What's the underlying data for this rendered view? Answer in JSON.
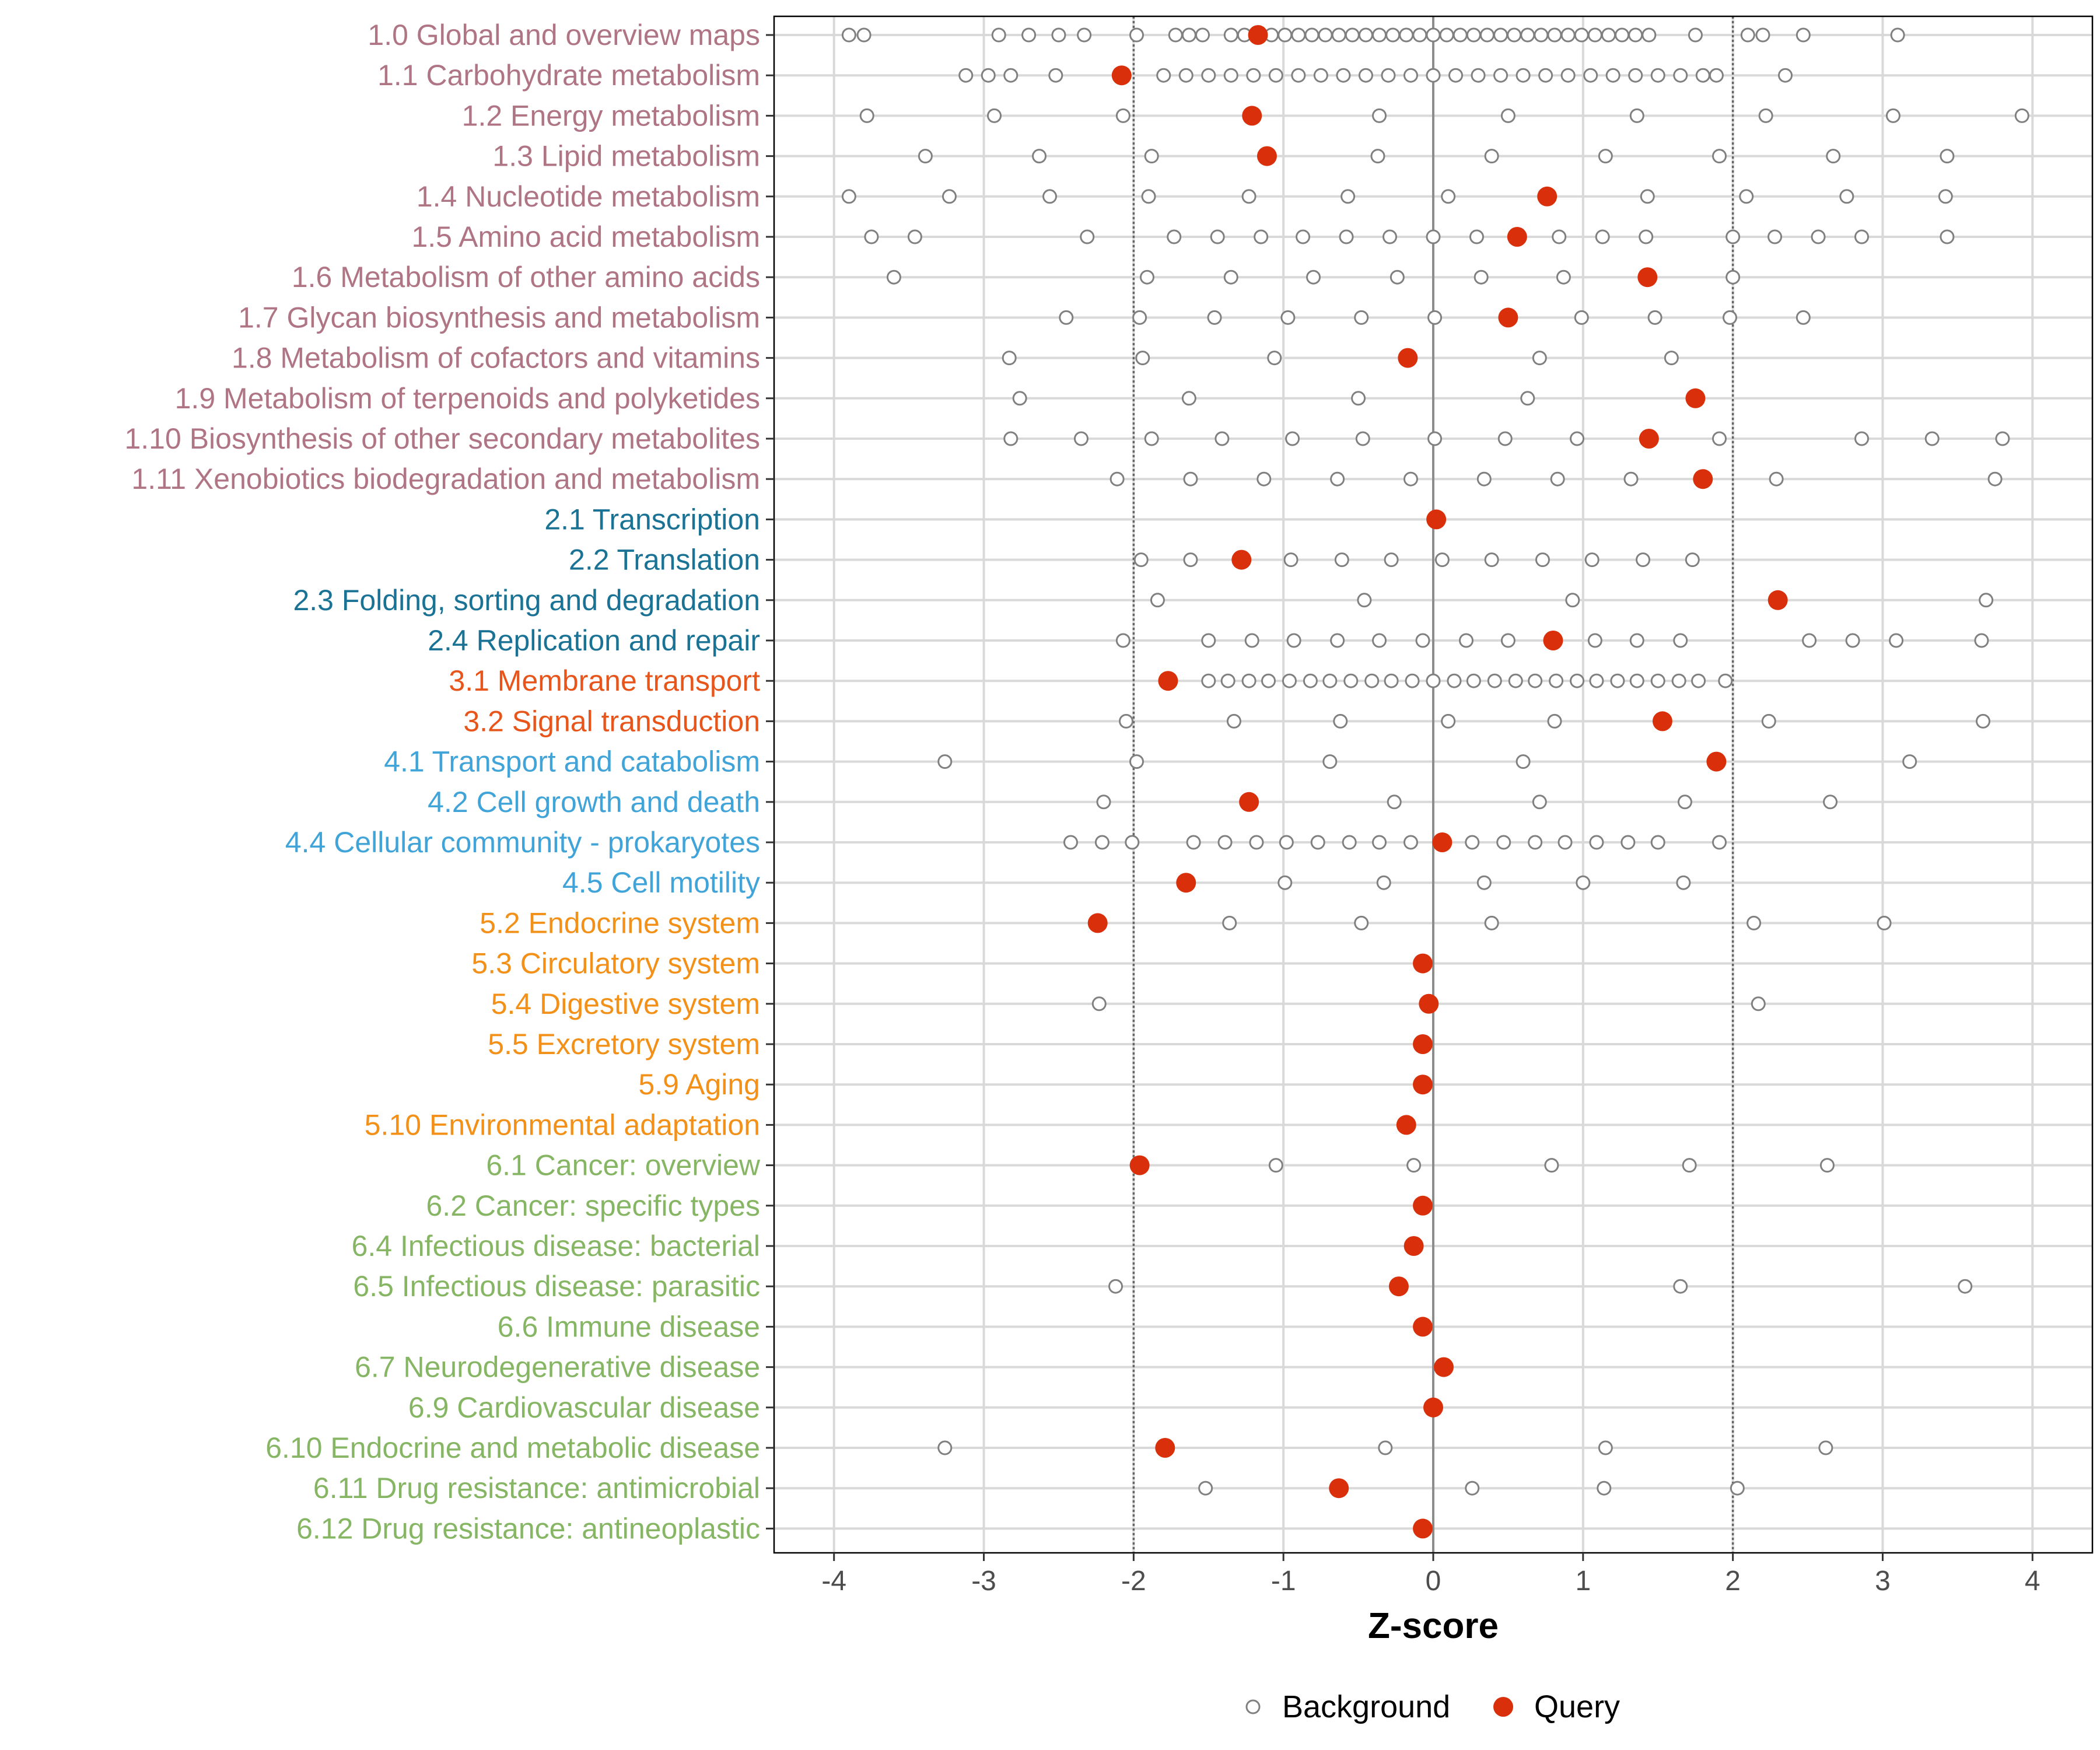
{
  "chart_data": {
    "type": "scatter",
    "xlabel": "Z-score",
    "ylabel": "",
    "xlim": [
      -4.4,
      4.4
    ],
    "xticks": [
      -4,
      -3,
      -2,
      -1,
      0,
      1,
      2,
      3,
      4
    ],
    "xtick_labels": [
      "-4",
      "-3",
      "-2",
      "-1",
      "0",
      "1",
      "2",
      "3",
      "4"
    ],
    "reference_lines": [
      -2,
      0,
      2
    ],
    "grid": true,
    "legend": {
      "position": "bottom",
      "entries": [
        {
          "label": "Background",
          "marker": "open-circle",
          "color": "#808080"
        },
        {
          "label": "Query",
          "marker": "filled-circle",
          "color": "#D9300B"
        }
      ]
    },
    "group_colors": {
      "1": "#B07585",
      "2": "#1A7295",
      "3": "#E8551B",
      "4": "#40A4D8",
      "5": "#F39018",
      "6": "#86B664"
    },
    "categories": [
      {
        "label": "1.0 Global and overview maps",
        "group": "1",
        "query": -1.17,
        "background": [
          -3.9,
          -3.8,
          -2.9,
          -2.7,
          -2.5,
          -2.33,
          -1.98,
          -1.72,
          -1.63,
          -1.54,
          -1.35,
          -1.26,
          -1.17,
          -1.08,
          -0.99,
          -0.9,
          -0.81,
          -0.72,
          -0.63,
          -0.54,
          -0.45,
          -0.36,
          -0.27,
          -0.18,
          -0.09,
          0,
          0.09,
          0.18,
          0.27,
          0.36,
          0.45,
          0.54,
          0.63,
          0.72,
          0.81,
          0.9,
          0.99,
          1.08,
          1.17,
          1.26,
          1.35,
          1.44,
          1.75,
          2.1,
          2.2,
          2.47,
          3.1
        ]
      },
      {
        "label": "1.1 Carbohydrate metabolism",
        "group": "1",
        "query": -2.08,
        "background": [
          -3.12,
          -2.97,
          -2.82,
          -2.52,
          -1.8,
          -1.65,
          -1.5,
          -1.35,
          -1.2,
          -1.05,
          -0.9,
          -0.75,
          -0.6,
          -0.45,
          -0.3,
          -0.15,
          0,
          0.15,
          0.3,
          0.45,
          0.6,
          0.75,
          0.9,
          1.05,
          1.2,
          1.35,
          1.5,
          1.65,
          1.8,
          1.89,
          2.35
        ]
      },
      {
        "label": "1.2 Energy metabolism",
        "group": "1",
        "query": -1.21,
        "background": [
          -3.78,
          -2.93,
          -2.07,
          -0.36,
          0.5,
          1.36,
          2.22,
          3.07,
          3.93
        ]
      },
      {
        "label": "1.3 Lipid metabolism",
        "group": "1",
        "query": -1.11,
        "background": [
          -3.39,
          -2.63,
          -1.88,
          -0.37,
          0.39,
          1.15,
          1.91,
          2.67,
          3.43
        ]
      },
      {
        "label": "1.4 Nucleotide metabolism",
        "group": "1",
        "query": 0.76,
        "background": [
          -3.9,
          -3.23,
          -2.56,
          -1.9,
          -1.23,
          -0.57,
          0.1,
          1.43,
          2.09,
          2.76,
          3.42
        ]
      },
      {
        "label": "1.5 Amino acid metabolism",
        "group": "1",
        "query": 0.56,
        "background": [
          -3.75,
          -3.46,
          -2.31,
          -1.73,
          -1.44,
          -1.15,
          -0.87,
          -0.58,
          -0.29,
          0,
          0.29,
          0.84,
          1.13,
          1.42,
          2,
          2.28,
          2.57,
          2.86,
          3.43
        ]
      },
      {
        "label": "1.6 Metabolism of other amino acids",
        "group": "1",
        "query": 1.43,
        "background": [
          -3.6,
          -1.91,
          -1.35,
          -0.8,
          -0.24,
          0.32,
          0.87,
          2
        ]
      },
      {
        "label": "1.7 Glycan biosynthesis and metabolism",
        "group": "1",
        "query": 0.5,
        "background": [
          -2.45,
          -1.96,
          -1.46,
          -0.97,
          -0.48,
          0.01,
          0.99,
          1.48,
          1.98,
          2.47
        ]
      },
      {
        "label": "1.8 Metabolism of cofactors and vitamins",
        "group": "1",
        "query": -0.17,
        "background": [
          -2.83,
          -1.94,
          -1.06,
          0.71,
          1.59
        ]
      },
      {
        "label": "1.9 Metabolism of terpenoids and polyketides",
        "group": "1",
        "query": 1.75,
        "background": [
          -2.76,
          -1.63,
          -0.5,
          0.63
        ]
      },
      {
        "label": "1.10 Biosynthesis of other secondary metabolites",
        "group": "1",
        "query": 1.44,
        "background": [
          -2.82,
          -2.35,
          -1.88,
          -1.41,
          -0.94,
          -0.47,
          0.01,
          0.48,
          0.96,
          1.91,
          2.86,
          3.33,
          3.8
        ]
      },
      {
        "label": "1.11 Xenobiotics biodegradation and metabolism",
        "group": "1",
        "query": 1.8,
        "background": [
          -2.11,
          -1.62,
          -1.13,
          -0.64,
          -0.15,
          0.34,
          0.83,
          1.32,
          2.29,
          3.75
        ]
      },
      {
        "label": "2.1 Transcription",
        "group": "2",
        "query": 0.02,
        "background": []
      },
      {
        "label": "2.2 Translation",
        "group": "2",
        "query": -1.28,
        "background": [
          -1.95,
          -1.62,
          -0.95,
          -0.61,
          -0.28,
          0.06,
          0.39,
          0.73,
          1.06,
          1.4,
          1.73
        ]
      },
      {
        "label": "2.3 Folding, sorting and degradation",
        "group": "2",
        "query": 2.3,
        "background": [
          -1.84,
          -0.46,
          0.93,
          3.69
        ]
      },
      {
        "label": "2.4 Replication and repair",
        "group": "2",
        "query": 0.8,
        "background": [
          -2.07,
          -1.5,
          -1.21,
          -0.93,
          -0.64,
          -0.36,
          -0.07,
          0.22,
          0.5,
          1.08,
          1.36,
          1.65,
          2.51,
          2.8,
          3.09,
          3.66
        ]
      },
      {
        "label": "3.1 Membrane transport",
        "group": "3",
        "query": -1.77,
        "background": [
          -1.5,
          -1.37,
          -1.23,
          -1.1,
          -0.96,
          -0.82,
          -0.69,
          -0.55,
          -0.41,
          -0.28,
          -0.14,
          0,
          0.14,
          0.27,
          0.41,
          0.55,
          0.68,
          0.82,
          0.96,
          1.09,
          1.23,
          1.36,
          1.5,
          1.64,
          1.77,
          1.95
        ]
      },
      {
        "label": "3.2 Signal transduction",
        "group": "3",
        "query": 1.53,
        "background": [
          -2.05,
          -1.33,
          -0.62,
          0.1,
          0.81,
          2.24,
          3.67
        ]
      },
      {
        "label": "4.1 Transport and catabolism",
        "group": "4",
        "query": 1.89,
        "background": [
          -3.26,
          -1.98,
          -0.69,
          0.6,
          3.18
        ]
      },
      {
        "label": "4.2 Cell growth and death",
        "group": "4",
        "query": -1.23,
        "background": [
          -2.2,
          -0.26,
          0.71,
          1.68,
          2.65
        ]
      },
      {
        "label": "4.4 Cellular community - prokaryotes",
        "group": "4",
        "query": 0.06,
        "background": [
          -2.42,
          -2.21,
          -2.01,
          -1.6,
          -1.39,
          -1.18,
          -0.98,
          -0.77,
          -0.56,
          -0.36,
          -0.15,
          0.26,
          0.47,
          0.68,
          0.88,
          1.09,
          1.3,
          1.5,
          1.91
        ]
      },
      {
        "label": "4.5 Cell motility",
        "group": "4",
        "query": -1.65,
        "background": [
          -0.99,
          -0.33,
          0.34,
          1,
          1.67
        ]
      },
      {
        "label": "5.2 Endocrine system",
        "group": "5",
        "query": -2.24,
        "background": [
          -1.36,
          -0.48,
          0.39,
          2.14,
          3.01
        ]
      },
      {
        "label": "5.3 Circulatory system",
        "group": "5",
        "query": -0.07,
        "background": []
      },
      {
        "label": "5.4 Digestive system",
        "group": "5",
        "query": -0.03,
        "background": [
          -2.23,
          2.17
        ]
      },
      {
        "label": "5.5 Excretory system",
        "group": "5",
        "query": -0.07,
        "background": []
      },
      {
        "label": "5.9 Aging",
        "group": "5",
        "query": -0.07,
        "background": []
      },
      {
        "label": "5.10 Environmental adaptation",
        "group": "5",
        "query": -0.18,
        "background": []
      },
      {
        "label": "6.1 Cancer: overview",
        "group": "6",
        "query": -1.96,
        "background": [
          -1.05,
          -0.13,
          0.79,
          1.71,
          2.63
        ]
      },
      {
        "label": "6.2 Cancer: specific types",
        "group": "6",
        "query": -0.07,
        "background": []
      },
      {
        "label": "6.4 Infectious disease: bacterial",
        "group": "6",
        "query": -0.13,
        "background": []
      },
      {
        "label": "6.5 Infectious disease: parasitic",
        "group": "6",
        "query": -0.23,
        "background": [
          -2.12,
          1.65,
          3.55
        ]
      },
      {
        "label": "6.6 Immune disease",
        "group": "6",
        "query": -0.07,
        "background": []
      },
      {
        "label": "6.7 Neurodegenerative disease",
        "group": "6",
        "query": 0.07,
        "background": []
      },
      {
        "label": "6.9 Cardiovascular disease",
        "group": "6",
        "query": 0,
        "background": []
      },
      {
        "label": "6.10 Endocrine and metabolic disease",
        "group": "6",
        "query": -1.79,
        "background": [
          -3.26,
          -0.32,
          1.15,
          2.62
        ]
      },
      {
        "label": "6.11 Drug resistance: antimicrobial",
        "group": "6",
        "query": -0.63,
        "background": [
          -1.52,
          0.26,
          1.14,
          2.03
        ]
      },
      {
        "label": "6.12 Drug resistance: antineoplastic",
        "group": "6",
        "query": -0.07,
        "background": []
      }
    ]
  }
}
